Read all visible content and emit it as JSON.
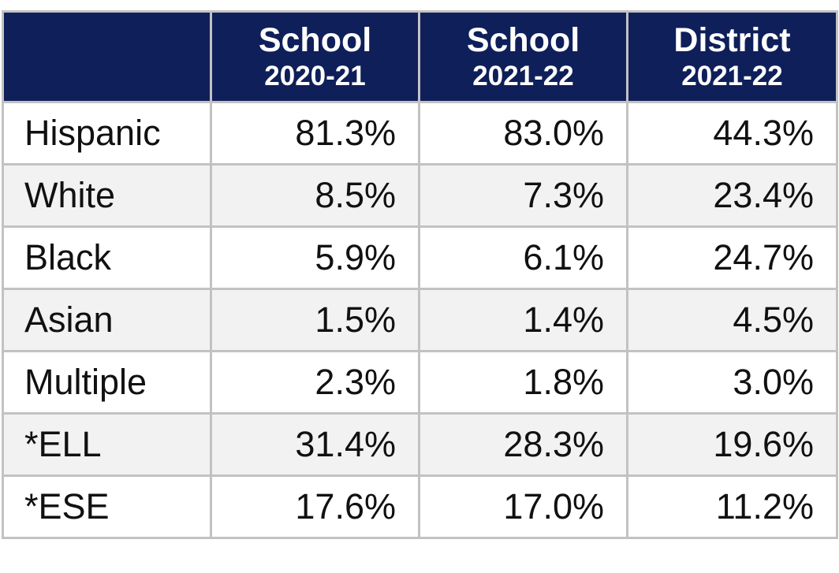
{
  "table": {
    "columns": [
      {
        "name": "School",
        "year": "2020-21"
      },
      {
        "name": "School",
        "year": "2021-22"
      },
      {
        "name": "District",
        "year": "2021-22"
      }
    ],
    "rows": [
      [
        "Hispanic",
        "81.3%",
        "83.0%",
        "44.3%"
      ],
      [
        "White",
        "8.5%",
        "7.3%",
        "23.4%"
      ],
      [
        "Black",
        "5.9%",
        "6.1%",
        "24.7%"
      ],
      [
        "Asian",
        "1.5%",
        "1.4%",
        "4.5%"
      ],
      [
        "Multiple",
        "2.3%",
        "1.8%",
        "3.0%"
      ],
      [
        "*ELL",
        "31.4%",
        "28.3%",
        "19.6%"
      ],
      [
        "*ESE",
        "17.6%",
        "17.0%",
        "11.2%"
      ]
    ]
  }
}
